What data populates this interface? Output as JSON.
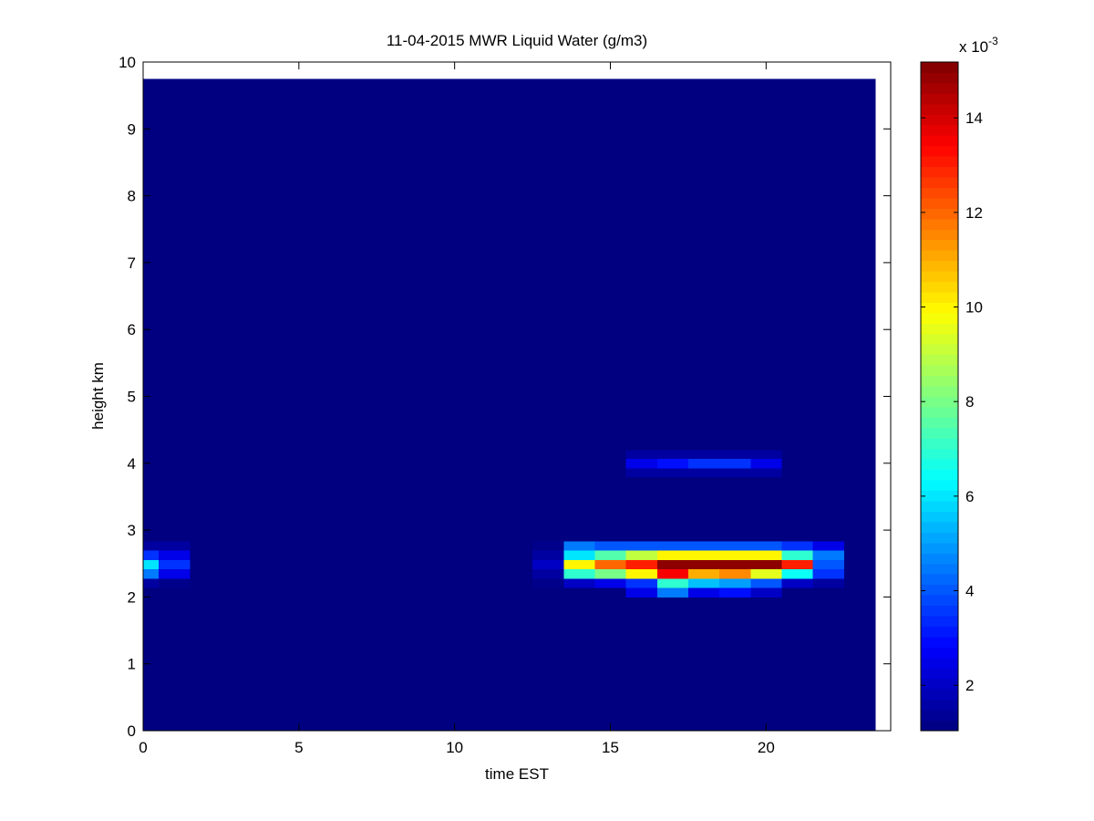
{
  "chart_data": {
    "type": "heatmap",
    "title": "11-04-2015 MWR Liquid Water (g/m3)",
    "x_label": "time EST",
    "y_label": "height km",
    "x": [
      0,
      0.5,
      1.5,
      2.5,
      3.5,
      4.5,
      5.5,
      6.5,
      7.5,
      8.5,
      9.5,
      10.5,
      11.5,
      12.5,
      13.5,
      14.5,
      15.5,
      16.5,
      17.5,
      18.5,
      19.5,
      20.5,
      21.5,
      22.5,
      23.5
    ],
    "y": [
      0,
      2.0,
      2.14,
      2.28,
      2.42,
      2.56,
      2.7,
      2.84,
      3.8,
      3.93,
      4.07,
      4.2,
      9.75
    ],
    "z": [
      [
        1,
        1,
        1,
        1,
        1,
        1,
        1,
        1,
        1,
        1,
        1,
        1,
        1,
        1,
        1,
        1,
        1,
        1,
        1,
        1,
        1,
        1,
        1,
        1
      ],
      [
        1,
        1,
        1,
        1,
        1,
        1,
        1,
        1,
        1,
        1,
        1,
        1,
        1,
        1,
        1,
        1,
        2.5,
        4.5,
        2.5,
        3,
        2,
        1,
        1,
        1
      ],
      [
        1.5,
        1.2,
        1,
        1,
        1,
        1,
        1,
        1,
        1,
        1,
        1,
        1,
        1,
        1.2,
        2,
        2.5,
        3.5,
        7,
        5.5,
        5,
        4,
        2,
        1.5,
        1
      ],
      [
        4.5,
        2.5,
        1,
        1,
        1,
        1,
        1,
        1,
        1,
        1,
        1,
        1,
        1,
        1.5,
        7,
        8,
        10,
        13.5,
        11,
        11.5,
        9.5,
        6.5,
        3.5,
        1
      ],
      [
        6,
        3.5,
        1,
        1,
        1,
        1,
        1,
        1,
        1,
        1,
        1,
        1,
        1,
        2,
        10,
        12,
        13,
        15,
        15,
        15,
        15,
        13,
        4,
        1
      ],
      [
        3.5,
        2.5,
        1,
        1,
        1,
        1,
        1,
        1,
        1,
        1,
        1,
        1,
        1,
        1.5,
        6,
        7.5,
        9,
        10,
        10,
        10,
        10,
        7,
        4.5,
        1
      ],
      [
        1.5,
        1.5,
        1,
        1,
        1,
        1,
        1,
        1,
        1,
        1,
        1,
        1,
        1,
        1.2,
        4.5,
        4,
        4,
        4,
        4,
        4,
        4,
        3.5,
        2.5,
        1
      ],
      [
        1,
        1,
        1,
        1,
        1,
        1,
        1,
        1,
        1,
        1,
        1,
        1,
        1,
        1,
        1,
        1,
        1,
        1,
        1,
        1,
        1,
        1,
        1,
        1
      ],
      [
        1,
        1,
        1,
        1,
        1,
        1,
        1,
        1,
        1,
        1,
        1,
        1,
        1,
        1,
        1,
        1,
        1.5,
        1.5,
        1.5,
        1.5,
        1.5,
        1,
        1,
        1
      ],
      [
        1,
        1,
        1,
        1,
        1,
        1,
        1,
        1,
        1,
        1,
        1,
        1,
        1,
        1,
        1,
        1,
        2.5,
        3,
        3.5,
        3.5,
        2.5,
        1,
        1,
        1
      ],
      [
        1,
        1,
        1,
        1,
        1,
        1,
        1,
        1,
        1,
        1,
        1,
        1,
        1,
        1,
        1,
        1,
        1.5,
        1.5,
        1.5,
        1.5,
        1.5,
        1,
        1,
        1
      ],
      [
        1,
        1,
        1,
        1,
        1,
        1,
        1,
        1,
        1,
        1,
        1,
        1,
        1,
        1,
        1,
        1,
        1,
        1,
        1,
        1,
        1,
        1,
        1,
        1
      ]
    ],
    "xlim": [
      0,
      24
    ],
    "xticks": [
      0,
      5,
      10,
      15,
      20
    ],
    "ylim": [
      0,
      10
    ],
    "yticks": [
      0,
      1,
      2,
      3,
      4,
      5,
      6,
      7,
      8,
      9,
      10
    ],
    "colormap": "jet",
    "clim": [
      1.04,
      15.18
    ],
    "cticks": [
      2,
      4,
      6,
      8,
      10,
      12,
      14
    ],
    "colorbar_scale_label": {
      "base": "x 10",
      "exponent": "-3"
    }
  }
}
